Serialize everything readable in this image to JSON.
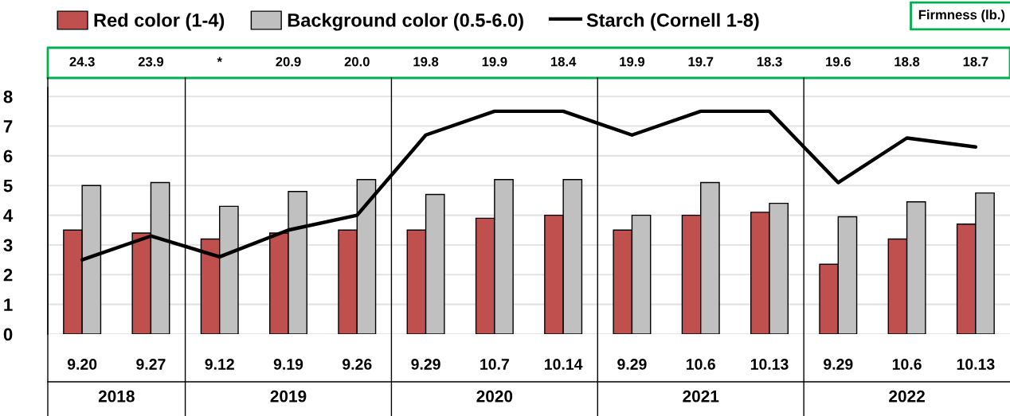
{
  "chart_data": {
    "type": "bar",
    "categories": [
      "9.20",
      "9.27",
      "9.12",
      "9.19",
      "9.26",
      "9.29",
      "10.7",
      "10.14",
      "9.29",
      "10.6",
      "10.13",
      "9.29",
      "10.6",
      "10.13"
    ],
    "ylim": [
      0,
      8.3
    ],
    "yticks": [
      0,
      1,
      2,
      3,
      4,
      5,
      6,
      7,
      8
    ],
    "grid": "y",
    "legend": "top",
    "annotations": [
      "24.3",
      "23.9",
      "*",
      "20.9",
      "20.0",
      "19.8",
      "19.9",
      "18.4",
      "19.9",
      "19.7",
      "18.3",
      "19.6",
      "18.8",
      "18.7",
      "Firmness (lb.)",
      "2018",
      "2019",
      "2020",
      "2021",
      "2022"
    ],
    "series": [
      {
        "name": "Red color (1-4)",
        "color": "#c0504d",
        "values": [
          3.5,
          3.4,
          3.2,
          3.4,
          3.5,
          3.5,
          3.9,
          4.0,
          3.5,
          4.0,
          4.1,
          2.35,
          3.2,
          3.7
        ]
      },
      {
        "name": "Background color (0.5-6.0)",
        "color": "#c0c0c0",
        "values": [
          5.0,
          5.1,
          4.3,
          4.8,
          5.2,
          4.7,
          5.2,
          5.2,
          4.0,
          5.1,
          4.4,
          3.95,
          4.45,
          4.75
        ]
      },
      {
        "name": "Starch (Cornell 1-8)",
        "type": "line",
        "color": "#000000",
        "values": [
          2.5,
          3.3,
          2.6,
          3.5,
          4.0,
          6.7,
          7.5,
          7.5,
          6.7,
          7.5,
          7.5,
          5.1,
          6.6,
          6.3
        ]
      }
    ]
  }
}
